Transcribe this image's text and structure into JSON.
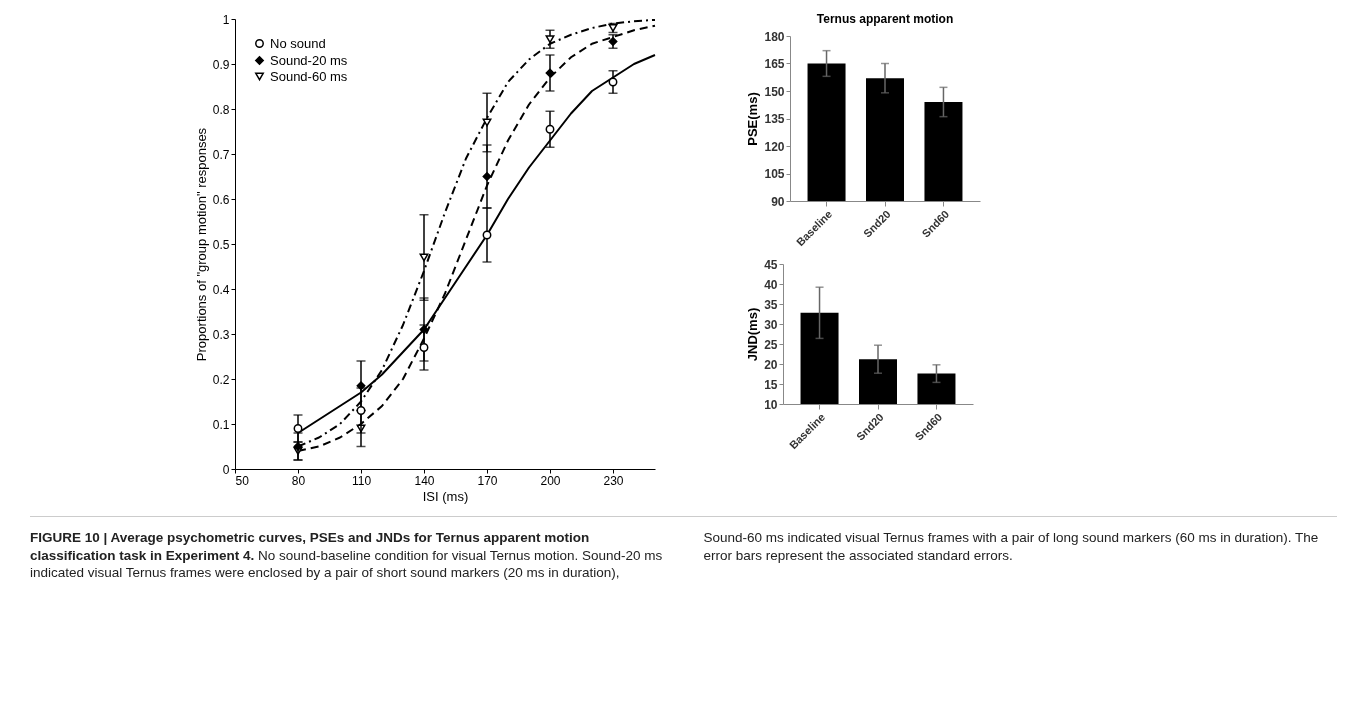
{
  "chart_data": [
    {
      "type": "scatter",
      "xlabel": "ISI (ms)",
      "ylabel": "Proportions of \"group motion\" responses",
      "xlim": [
        50,
        250
      ],
      "xticks": [
        50,
        80,
        110,
        140,
        170,
        200,
        230
      ],
      "ylim": [
        0,
        1
      ],
      "yticks": [
        0,
        0.1,
        0.2,
        0.3,
        0.4,
        0.5,
        0.6,
        0.7,
        0.8,
        0.9,
        1
      ],
      "legend": "top left",
      "series": [
        {
          "name": "No sound",
          "type": "scatter",
          "marker": "circle",
          "color": "#000000",
          "x": [
            80,
            110,
            140,
            170,
            200,
            230
          ],
          "values": [
            0.09,
            0.13,
            0.27,
            0.52,
            0.755,
            0.86
          ],
          "errors": [
            0.03,
            0.05,
            0.05,
            0.06,
            0.04,
            0.025
          ]
        },
        {
          "name": "Sound-20 ms",
          "type": "scatter",
          "marker": "diamond",
          "color": "#000000",
          "x": [
            80,
            110,
            140,
            170,
            200,
            230
          ],
          "values": [
            0.05,
            0.185,
            0.31,
            0.65,
            0.88,
            0.95
          ],
          "errors": [
            0.03,
            0.055,
            0.07,
            0.07,
            0.04,
            0.015
          ]
        },
        {
          "name": "Sound-60 ms",
          "type": "scatter",
          "marker": "triangle",
          "color": "#000000",
          "x": [
            80,
            110,
            140,
            170,
            200,
            230
          ],
          "values": [
            0.04,
            0.09,
            0.47,
            0.77,
            0.955,
            0.98
          ],
          "errors": [
            0.02,
            0.04,
            0.095,
            0.065,
            0.02,
            0.01
          ]
        },
        {
          "type": "line",
          "line_style": "solid",
          "color": "#000000",
          "x": [
            80,
            90,
            100,
            110,
            120,
            130,
            140,
            150,
            160,
            170,
            180,
            190,
            200,
            210,
            220,
            230,
            240,
            250
          ],
          "values": [
            0.08,
            0.11,
            0.14,
            0.17,
            0.21,
            0.26,
            0.31,
            0.38,
            0.45,
            0.52,
            0.6,
            0.67,
            0.73,
            0.79,
            0.84,
            0.87,
            0.9,
            0.92
          ]
        },
        {
          "type": "line",
          "line_style": "dashed",
          "color": "#000000",
          "x": [
            80,
            90,
            100,
            110,
            120,
            130,
            140,
            150,
            160,
            170,
            180,
            190,
            200,
            210,
            220,
            230,
            240,
            250
          ],
          "values": [
            0.04,
            0.05,
            0.07,
            0.1,
            0.14,
            0.2,
            0.29,
            0.39,
            0.51,
            0.63,
            0.73,
            0.81,
            0.87,
            0.915,
            0.945,
            0.96,
            0.975,
            0.985
          ]
        },
        {
          "type": "line",
          "line_style": "dashdot",
          "color": "#000000",
          "x": [
            80,
            90,
            100,
            110,
            120,
            130,
            140,
            150,
            160,
            170,
            180,
            190,
            200,
            210,
            220,
            230,
            240,
            250
          ],
          "values": [
            0.05,
            0.07,
            0.1,
            0.15,
            0.22,
            0.32,
            0.44,
            0.57,
            0.69,
            0.78,
            0.86,
            0.91,
            0.945,
            0.965,
            0.98,
            0.99,
            0.995,
            0.998
          ]
        }
      ],
      "annotations": [
        "FIGURE 10 | Average psychometric curves, PSEs and JNDs for Ternus apparent motion classification task in Experiment 4.",
        "No sound-baseline condition for visual Ternus motion. Sound-20 ms indicated visual Ternus frames were enclosed by a pair of short sound markers (20 ms in duration), Sound-60 ms indicated visual Ternus frames with a pair of long sound markers (60 ms in duration). The error bars represent the associated standard errors."
      ]
    },
    {
      "type": "bar",
      "title": "Ternus apparent motion",
      "ylabel": "PSE(ms)",
      "categories": [
        "Baseline",
        "Snd20",
        "Snd60"
      ],
      "ylim": [
        90,
        180
      ],
      "yticks": [
        90,
        105,
        120,
        135,
        150,
        165,
        180
      ],
      "series": [
        {
          "color": "#000000",
          "values": [
            165,
            157,
            144
          ],
          "errors": [
            7,
            8,
            8
          ]
        }
      ]
    },
    {
      "type": "bar",
      "ylabel": "JND(ms)",
      "categories": [
        "Baseline",
        "Snd20",
        "Snd60"
      ],
      "ylim": [
        10,
        45
      ],
      "yticks": [
        10,
        15,
        20,
        25,
        30,
        35,
        40,
        45
      ],
      "series": [
        {
          "color": "#000000",
          "values": [
            32.8,
            21.2,
            17.6
          ],
          "errors": [
            6.4,
            3.5,
            2.2
          ]
        }
      ]
    }
  ]
}
